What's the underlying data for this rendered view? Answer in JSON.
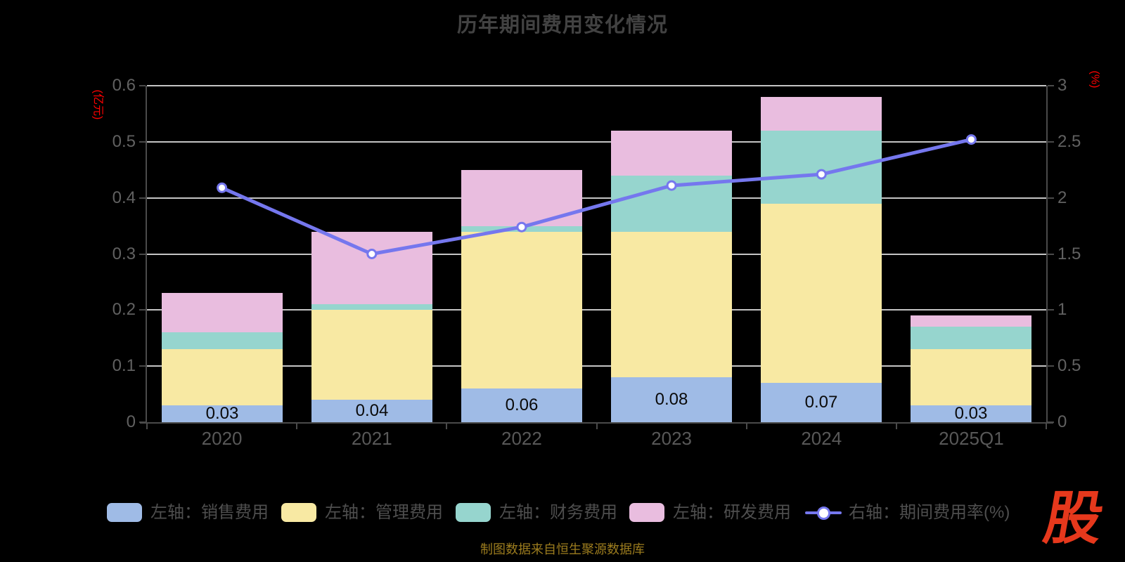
{
  "title": "历年期间费用变化情况",
  "source_note": "制图数据来自恒生聚源数据库",
  "logo_text": "股",
  "left_axis": {
    "unit": "(亿元)",
    "min": 0,
    "max": 0.6,
    "ticks": [
      "0",
      "0.1",
      "0.2",
      "0.3",
      "0.4",
      "0.5",
      "0.6"
    ]
  },
  "right_axis": {
    "unit": "(%)",
    "min": 0,
    "max": 3,
    "ticks": [
      "0",
      "0.5",
      "1",
      "1.5",
      "2",
      "2.5",
      "3"
    ]
  },
  "chart_data": {
    "type": "stacked-bar+line",
    "title": "历年期间费用变化情况",
    "categories": [
      "2020",
      "2021",
      "2022",
      "2023",
      "2024",
      "2025Q1"
    ],
    "grid": true,
    "legend_position": "bottom",
    "left_ylim": [
      0,
      0.6
    ],
    "right_ylim": [
      0,
      3
    ],
    "series": [
      {
        "name": "左轴：销售费用",
        "type": "bar",
        "stack": true,
        "yaxis": "left",
        "color": "#9fbbe6",
        "values": [
          0.03,
          0.04,
          0.06,
          0.08,
          0.07,
          0.03
        ],
        "data_labels": [
          "0.03",
          "0.04",
          "0.06",
          "0.08",
          "0.07",
          "0.03"
        ]
      },
      {
        "name": "左轴：管理费用",
        "type": "bar",
        "stack": true,
        "yaxis": "left",
        "color": "#f8e9a3",
        "values": [
          0.1,
          0.16,
          0.28,
          0.26,
          0.32,
          0.1
        ]
      },
      {
        "name": "左轴：财务费用",
        "type": "bar",
        "stack": true,
        "yaxis": "left",
        "color": "#96d5ce",
        "values": [
          0.03,
          0.01,
          0.01,
          0.1,
          0.13,
          0.04
        ]
      },
      {
        "name": "左轴：研发费用",
        "type": "bar",
        "stack": true,
        "yaxis": "left",
        "color": "#e9bddf",
        "values": [
          0.07,
          0.13,
          0.1,
          0.08,
          0.06,
          0.02
        ]
      },
      {
        "name": "右轴：期间费用率(%)",
        "type": "line",
        "yaxis": "right",
        "color": "#7577ee",
        "values": [
          2.09,
          1.5,
          1.74,
          2.11,
          2.21,
          2.52
        ]
      }
    ]
  },
  "colors": {
    "background": "#000000",
    "grid": "#c4c4c4",
    "axis": "#4a4a4a",
    "axis_unit_red": "#ff0000",
    "tick_text": "#616161",
    "category_text": "#585858",
    "title_text": "#424242",
    "legend_text": "#4e4e4e",
    "bar_label_text": "#0a0a0a",
    "source_text": "#9c7c1e",
    "logo_red": "#e6381c"
  }
}
